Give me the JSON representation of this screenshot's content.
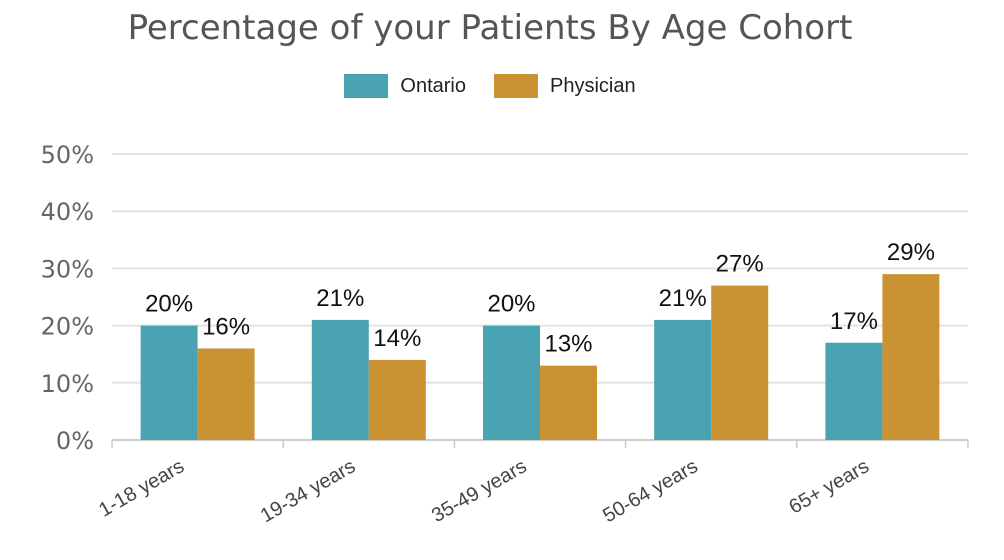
{
  "chart_data": {
    "type": "bar",
    "title": "Percentage of your Patients By Age Cohort",
    "categories": [
      "1-18 years",
      "19-34 years",
      "35-49 years",
      "50-64 years",
      "65+ years"
    ],
    "series": [
      {
        "name": "Ontario",
        "color": "#4aa3b0",
        "values": [
          20,
          21,
          20,
          21,
          17
        ],
        "labels": [
          "20%",
          "21%",
          "20%",
          "21%",
          "17%"
        ]
      },
      {
        "name": "Physician",
        "color": "#c99233",
        "values": [
          16,
          14,
          13,
          27,
          29
        ],
        "labels": [
          "16%",
          "14%",
          "13%",
          "27%",
          "29%"
        ]
      }
    ],
    "ylim": [
      0,
      50
    ],
    "yticks": [
      "0%",
      "10%",
      "20%",
      "30%",
      "40%",
      "50%"
    ],
    "grid": true,
    "legend": "top-center"
  }
}
